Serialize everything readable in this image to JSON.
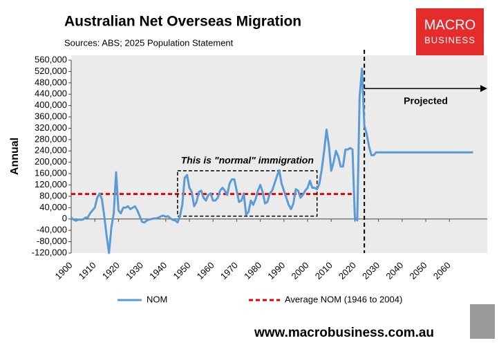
{
  "chart_data": {
    "type": "line",
    "title": "Australian Net Overseas Migration",
    "subtitle": "Sources: ABS; 2025 Population Statement",
    "y_label": "Annual",
    "x": [
      1900,
      1901,
      1902,
      1903,
      1904,
      1905,
      1906,
      1907,
      1908,
      1909,
      1910,
      1911,
      1912,
      1913,
      1914,
      1915,
      1916,
      1917,
      1918,
      1919,
      1920,
      1921,
      1922,
      1923,
      1924,
      1925,
      1926,
      1927,
      1928,
      1929,
      1930,
      1931,
      1932,
      1933,
      1934,
      1935,
      1936,
      1937,
      1938,
      1939,
      1940,
      1941,
      1942,
      1943,
      1944,
      1945,
      1946,
      1947,
      1948,
      1949,
      1950,
      1951,
      1952,
      1953,
      1954,
      1955,
      1956,
      1957,
      1958,
      1959,
      1960,
      1961,
      1962,
      1963,
      1964,
      1965,
      1966,
      1967,
      1968,
      1969,
      1970,
      1971,
      1972,
      1973,
      1974,
      1975,
      1976,
      1977,
      1978,
      1979,
      1980,
      1981,
      1982,
      1983,
      1984,
      1985,
      1986,
      1987,
      1988,
      1989,
      1990,
      1991,
      1992,
      1993,
      1994,
      1995,
      1996,
      1997,
      1998,
      1999,
      2000,
      2001,
      2002,
      2003,
      2004,
      2005,
      2006,
      2007,
      2008,
      2009,
      2010,
      2011,
      2012,
      2013,
      2014,
      2015,
      2016,
      2017,
      2018,
      2019,
      2020,
      2021,
      2022,
      2023,
      2024,
      2025,
      2026,
      2027,
      2028,
      2029,
      2030,
      2031,
      2032,
      2033,
      2034,
      2035,
      2036,
      2037,
      2038,
      2039,
      2040,
      2041,
      2042,
      2043,
      2044,
      2045,
      2046,
      2047,
      2048,
      2049,
      2050,
      2051,
      2052,
      2053,
      2054,
      2055,
      2056,
      2057,
      2058,
      2059,
      2060,
      2061,
      2062,
      2063,
      2064,
      2065,
      2066,
      2067,
      2068,
      2069,
      2070
    ],
    "series": [
      {
        "name": "NOM",
        "color": "#5b9bd5",
        "values": [
          5000,
          -2000,
          -6000,
          -2000,
          -3000,
          -2000,
          5000,
          5000,
          20000,
          30000,
          40000,
          75000,
          90000,
          70000,
          10000,
          -60000,
          -120000,
          -30000,
          20000,
          165000,
          30000,
          20000,
          40000,
          40000,
          45000,
          35000,
          40000,
          45000,
          30000,
          10000,
          -10000,
          -12000,
          -5000,
          -2000,
          0,
          2000,
          2000,
          5000,
          10000,
          12000,
          8000,
          10000,
          2000,
          -3000,
          -5000,
          -12000,
          10000,
          50000,
          145000,
          155000,
          110000,
          95000,
          45000,
          60000,
          95000,
          100000,
          75000,
          65000,
          85000,
          90000,
          65000,
          65000,
          75000,
          100000,
          110000,
          100000,
          85000,
          125000,
          140000,
          140000,
          100000,
          60000,
          65000,
          90000,
          15000,
          25000,
          65000,
          50000,
          70000,
          100000,
          120000,
          95000,
          55000,
          60000,
          90000,
          100000,
          125000,
          150000,
          172000,
          125000,
          100000,
          75000,
          50000,
          35000,
          55000,
          105000,
          100000,
          75000,
          85000,
          100000,
          110000,
          135000,
          110000,
          110000,
          105000,
          125000,
          175000,
          240000,
          315000,
          260000,
          170000,
          200000,
          240000,
          220000,
          185000,
          185000,
          245000,
          245000,
          250000,
          245000,
          5000,
          -5000,
          430000,
          530000,
          330000,
          300000,
          255000,
          225000,
          225000,
          235000,
          235000,
          235000,
          235000,
          235000,
          235000,
          235000,
          235000,
          235000,
          235000,
          235000,
          235000,
          235000,
          235000,
          235000,
          235000,
          235000,
          235000,
          235000,
          235000,
          235000,
          235000,
          235000,
          235000,
          235000,
          235000,
          235000,
          235000,
          235000,
          235000,
          235000,
          235000,
          235000,
          235000,
          235000,
          235000,
          235000,
          235000,
          235000,
          235000,
          235000,
          235000
        ]
      }
    ],
    "reference_line": {
      "name": "Average NOM (1946 to 2004)",
      "color": "#e00000",
      "value": 88000,
      "x_range": [
        1900,
        2020
      ]
    },
    "annotations": [
      {
        "text": "This is \"normal\" immigration",
        "box_x": [
          1945,
          2004
        ],
        "box_y": [
          10000,
          170000
        ]
      },
      {
        "text": "Projected",
        "divider_x": 2024
      }
    ],
    "xlim": [
      1900,
      2076
    ],
    "ylim": [
      -120000,
      560000
    ],
    "xticks": [
      1900,
      1910,
      1920,
      1930,
      1940,
      1950,
      1960,
      1970,
      1980,
      1990,
      2000,
      2010,
      2020,
      2030,
      2040,
      2050,
      2060
    ],
    "yticks": [
      {
        "value": -120000,
        "label": "-120,000"
      },
      {
        "value": -80000,
        "label": "-80,000"
      },
      {
        "value": -40000,
        "label": "-40,000"
      },
      0,
      {
        "value": 40000,
        "label": "40,000"
      },
      {
        "value": 80000,
        "label": "80,000"
      },
      {
        "value": 120000,
        "label": "120,000"
      },
      {
        "value": 160000,
        "label": "160,000"
      },
      {
        "value": 200000,
        "label": "200,000"
      },
      {
        "value": 240000,
        "label": "240,000"
      },
      {
        "value": 280000,
        "label": "280,000"
      },
      {
        "value": 320000,
        "label": "320,000"
      },
      {
        "value": 360000,
        "label": "360,000"
      },
      {
        "value": 400000,
        "label": "400,000"
      },
      {
        "value": 440000,
        "label": "440,000"
      },
      {
        "value": 480000,
        "label": "480,000"
      },
      {
        "value": 520000,
        "label": "520,000"
      },
      {
        "value": 560000,
        "label": "560,000"
      }
    ],
    "grid": false
  },
  "logo": {
    "line1": "MACRO",
    "line2": "BUSINESS"
  },
  "footer": "www.macrobusiness.com.au"
}
